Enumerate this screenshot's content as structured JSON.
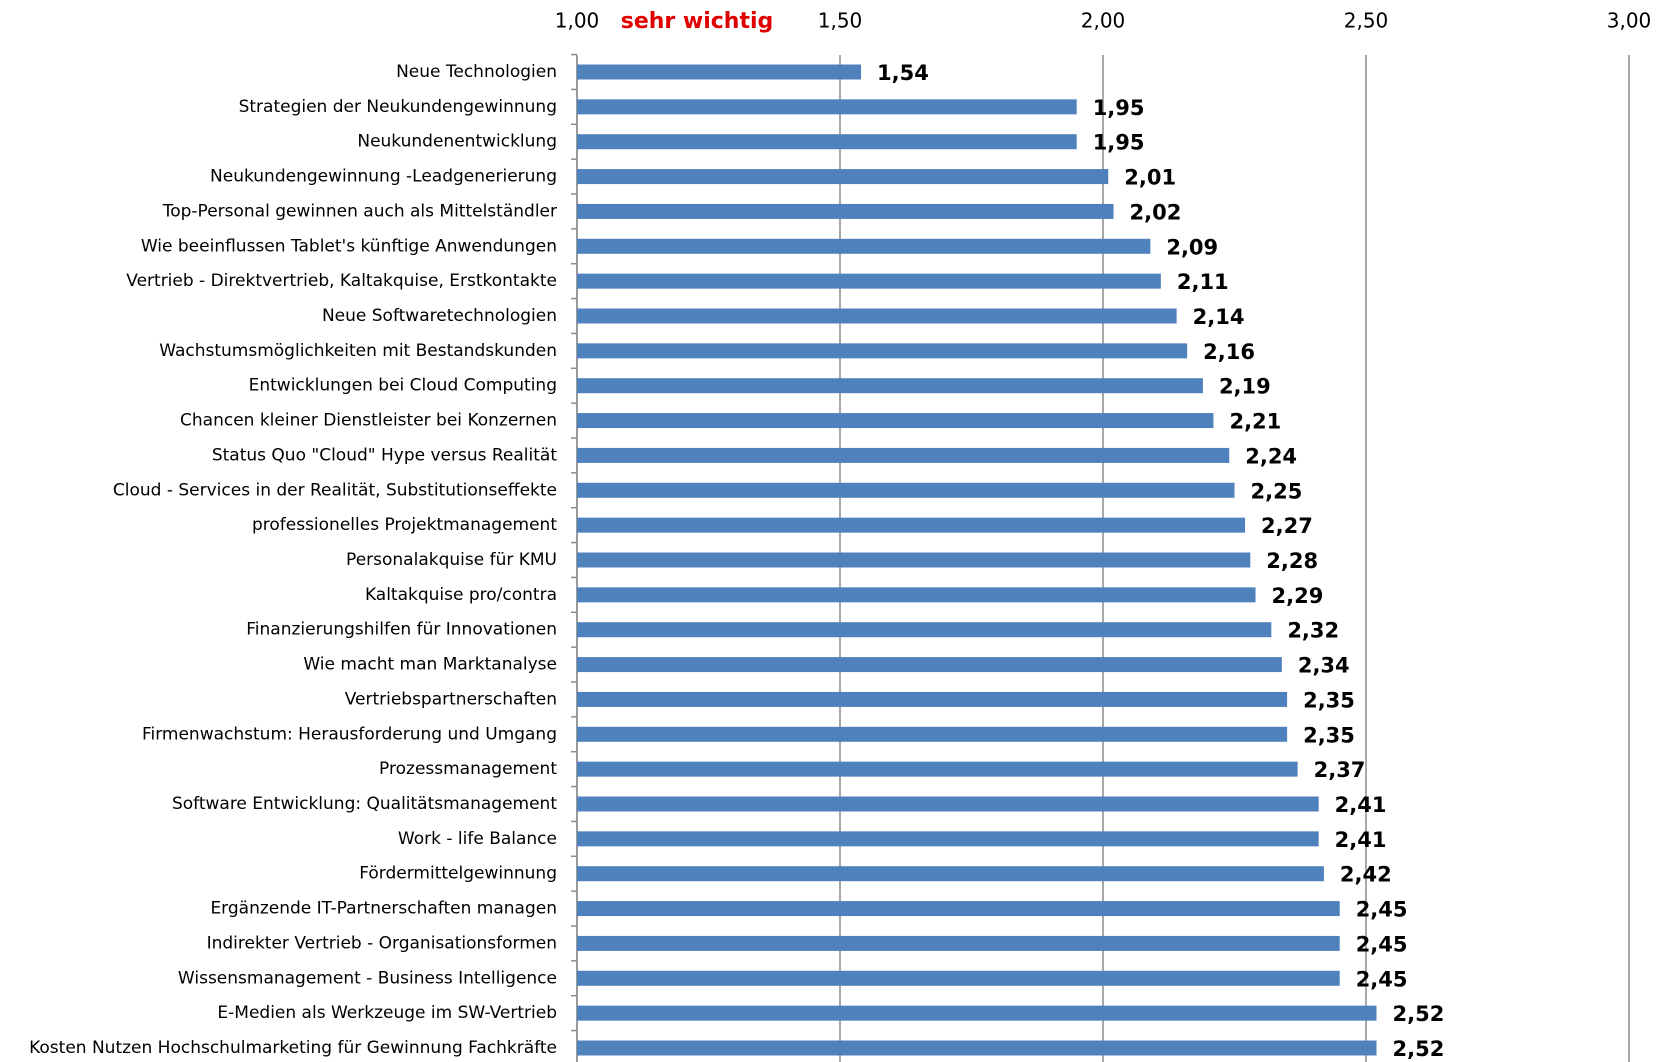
{
  "chart_data": {
    "type": "bar",
    "orientation": "horizontal",
    "annotation": "sehr wichtig",
    "categories": [
      "Neue Technologien",
      "Strategien der Neukundengewinnung",
      "Neukundenentwicklung",
      "Neukundengewinnung -Leadgenerierung",
      "Top-Personal gewinnen auch als Mittelständler",
      "Wie beeinflussen Tablet's künftige Anwendungen",
      "Vertrieb - Direktvertrieb, Kaltakquise, Erstkontakte",
      "Neue Softwaretechnologien",
      "Wachstumsmöglichkeiten mit Bestandskunden",
      "Entwicklungen bei Cloud Computing",
      "Chancen kleiner Dienstleister bei Konzernen",
      "Status Quo \"Cloud\" Hype versus Realität",
      "Cloud - Services in der Realität, Substitutionseffekte",
      "professionelles Projektmanagement",
      "Personalakquise für KMU",
      "Kaltakquise pro/contra",
      "Finanzierungshilfen für Innovationen",
      "Wie macht man Marktanalyse",
      "Vertriebspartnerschaften",
      "Firmenwachstum: Herausforderung und Umgang",
      "Prozessmanagement",
      "Software Entwicklung: Qualitätsmanagement",
      "Work - life Balance",
      "Fördermittelgewinnung",
      "Ergänzende IT-Partnerschaften managen",
      "Indirekter Vertrieb - Organisationsformen",
      "Wissensmanagement - Business Intelligence",
      "E-Medien als Werkzeuge im SW-Vertrieb",
      "Kosten Nutzen Hochschulmarketing für Gewinnung Fachkräfte"
    ],
    "values": [
      1.54,
      1.95,
      1.95,
      2.01,
      2.02,
      2.09,
      2.11,
      2.14,
      2.16,
      2.19,
      2.21,
      2.24,
      2.25,
      2.27,
      2.28,
      2.29,
      2.32,
      2.34,
      2.35,
      2.35,
      2.37,
      2.41,
      2.41,
      2.42,
      2.45,
      2.45,
      2.45,
      2.52,
      2.52
    ],
    "value_labels": [
      "1,54",
      "1,95",
      "1,95",
      "2,01",
      "2,02",
      "2,09",
      "2,11",
      "2,14",
      "2,16",
      "2,19",
      "2,21",
      "2,24",
      "2,25",
      "2,27",
      "2,28",
      "2,29",
      "2,32",
      "2,34",
      "2,35",
      "2,35",
      "2,37",
      "2,41",
      "2,41",
      "2,42",
      "2,45",
      "2,45",
      "2,45",
      "2,52",
      "2,52"
    ],
    "color": "#4f81bd",
    "xlim": [
      1,
      3
    ],
    "xticks": [
      {
        "value": 1,
        "label": "1,00"
      },
      {
        "value": 1.5,
        "label": "1,50"
      },
      {
        "value": 2,
        "label": "2,00"
      },
      {
        "value": 2.5,
        "label": "2,50"
      },
      {
        "value": 3,
        "label": "3,00"
      }
    ],
    "grid": true
  }
}
